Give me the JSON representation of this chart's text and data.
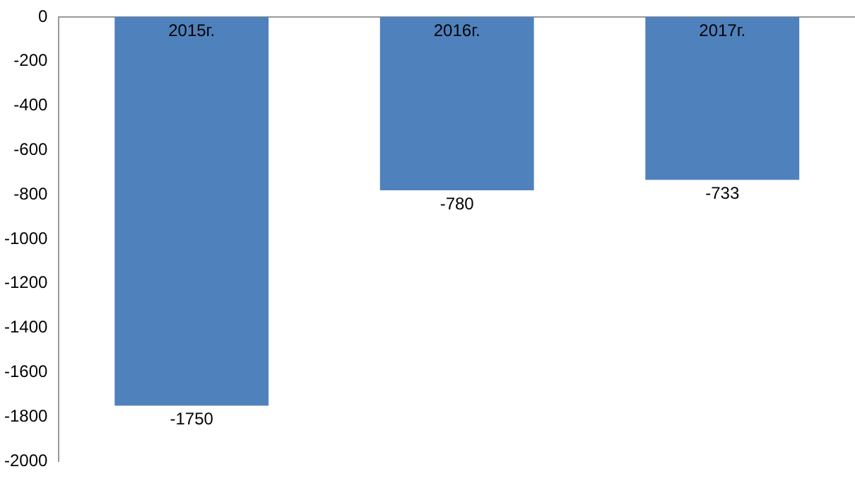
{
  "chart_data": {
    "type": "bar",
    "categories": [
      "2015г.",
      "2016г.",
      "2017г."
    ],
    "values": [
      -1750,
      -780,
      -733
    ],
    "color": "#4f81bd",
    "ylim": [
      -2000,
      0
    ],
    "yticks": [
      -2000,
      -1800,
      -1600,
      -1400,
      -1200,
      -1000,
      -800,
      -600,
      -400,
      -200,
      0
    ],
    "grid": false,
    "legend": false,
    "data_labels": true
  }
}
